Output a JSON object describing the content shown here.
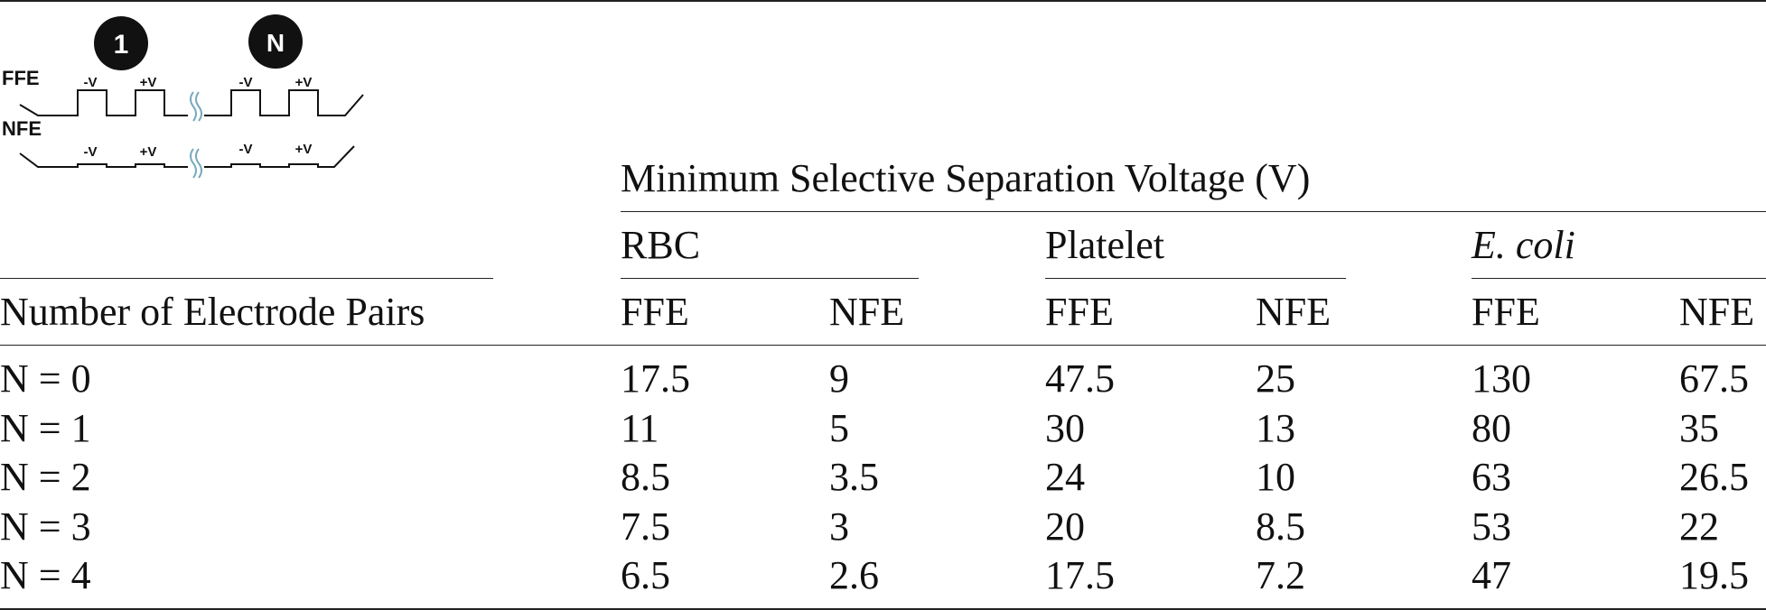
{
  "schematic": {
    "circle_labels": [
      "1",
      "N"
    ],
    "row_labels": [
      "FFE",
      "NFE"
    ],
    "voltage_labels": [
      "-V",
      "+V"
    ]
  },
  "table": {
    "super_header": "Minimum Selective Separation Voltage (V)",
    "row_header": "Number of Electrode Pairs",
    "groups": [
      "RBC",
      "Platelet",
      "E. coli"
    ],
    "subheaders": [
      "FFE",
      "NFE",
      "FFE",
      "NFE",
      "FFE",
      "NFE"
    ],
    "rows": [
      {
        "label": "N = 0",
        "values": [
          "17.5",
          "9",
          "47.5",
          "25",
          "130",
          "67.5"
        ]
      },
      {
        "label": "N = 1",
        "values": [
          "11",
          "5",
          "30",
          "13",
          "80",
          "35"
        ]
      },
      {
        "label": "N = 2",
        "values": [
          "8.5",
          "3.5",
          "24",
          "10",
          "63",
          "26.5"
        ]
      },
      {
        "label": "N = 3",
        "values": [
          "7.5",
          "3",
          "20",
          "8.5",
          "53",
          "22"
        ]
      },
      {
        "label": "N = 4",
        "values": [
          "6.5",
          "2.6",
          "17.5",
          "7.2",
          "47",
          "19.5"
        ]
      }
    ]
  }
}
